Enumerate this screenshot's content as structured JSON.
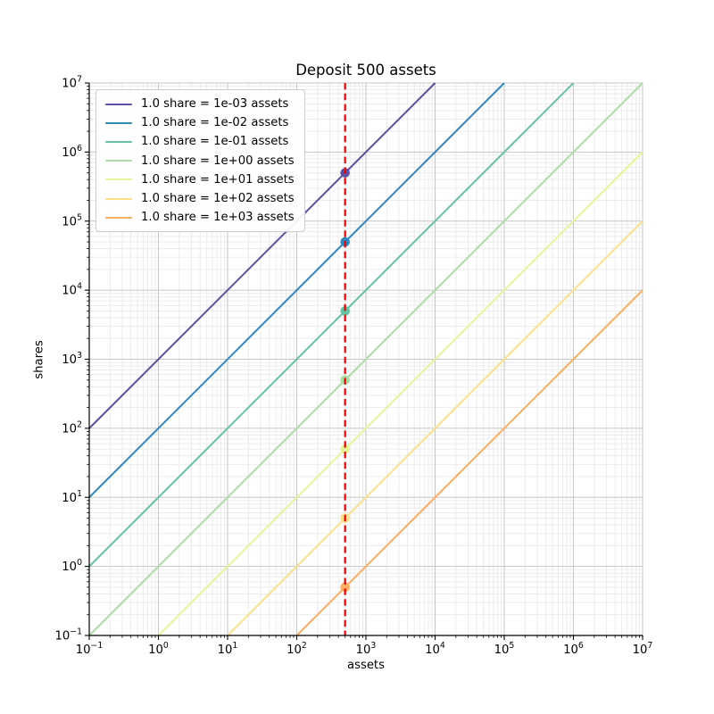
{
  "title": "Deposit 500 assets",
  "chart_data": {
    "type": "line",
    "title": "Deposit 500 assets",
    "xlabel": "assets",
    "ylabel": "shares",
    "x_scale": "log",
    "y_scale": "log",
    "xlim": [
      0.1,
      10000000
    ],
    "ylim": [
      0.1,
      10000000
    ],
    "x_tick_exponents": [
      -1,
      0,
      1,
      2,
      3,
      4,
      5,
      6,
      7
    ],
    "y_tick_exponents": [
      -1,
      0,
      1,
      2,
      3,
      4,
      5,
      6,
      7
    ],
    "grid": {
      "major": true,
      "minor": true,
      "major_color": "#c6c6c6",
      "minor_color": "#eaeaea"
    },
    "legend_position": "upper left",
    "series": [
      {
        "label": "1.0 share = 1e-03 assets",
        "assets_per_share": 0.001,
        "color": "#5e4fa2",
        "shares_at_deposit": 500000
      },
      {
        "label": "1.0 share = 1e-02 assets",
        "assets_per_share": 0.01,
        "color": "#3288bd",
        "shares_at_deposit": 50000
      },
      {
        "label": "1.0 share = 1e-01 assets",
        "assets_per_share": 0.1,
        "color": "#66c2a5",
        "shares_at_deposit": 5000
      },
      {
        "label": "1.0 share = 1e+00 assets",
        "assets_per_share": 1,
        "color": "#abdda4",
        "shares_at_deposit": 500
      },
      {
        "label": "1.0 share = 1e+01 assets",
        "assets_per_share": 10,
        "color": "#e6f598",
        "shares_at_deposit": 50
      },
      {
        "label": "1.0 share = 1e+02 assets",
        "assets_per_share": 100,
        "color": "#fee08b",
        "shares_at_deposit": 5
      },
      {
        "label": "1.0 share = 1e+03 assets",
        "assets_per_share": 1000,
        "color": "#fdae61",
        "shares_at_deposit": 0.5
      }
    ],
    "deposit_line": {
      "assets": 500,
      "color": "#ee0000",
      "style": "dashed"
    }
  }
}
